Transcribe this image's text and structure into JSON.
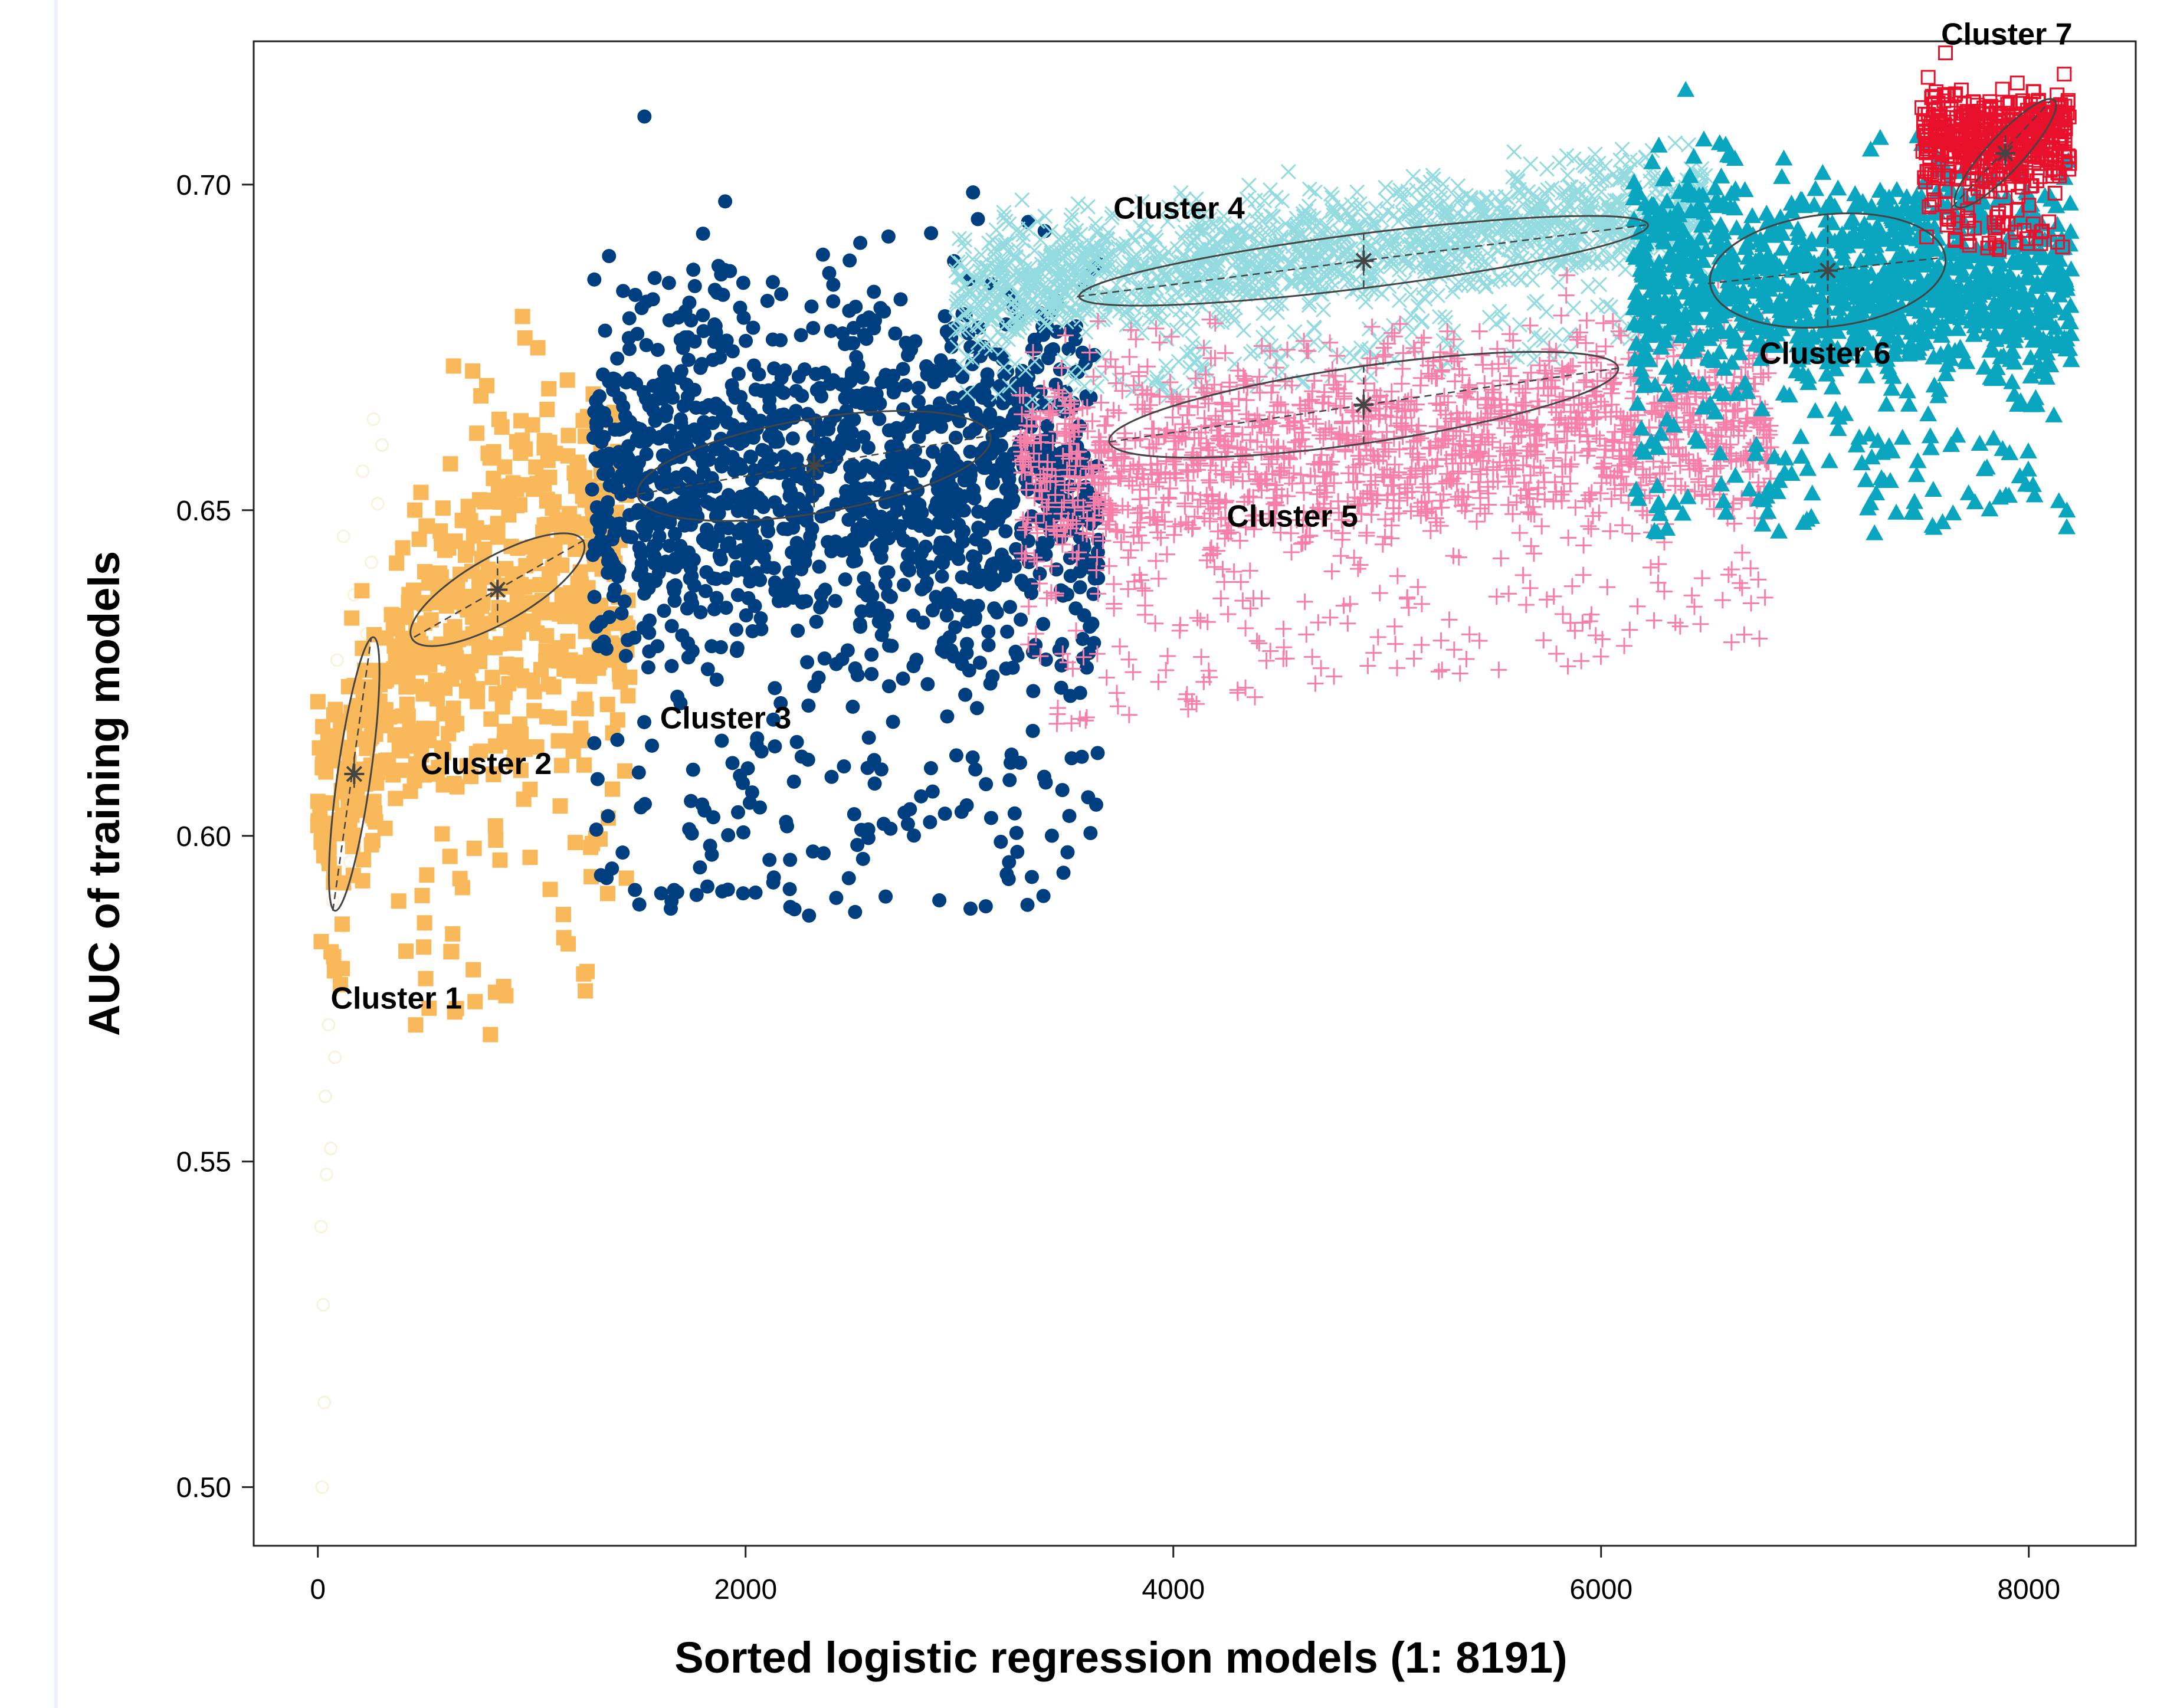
{
  "chart_data": {
    "type": "scatter",
    "title": "",
    "xlabel": "Sorted logistic regression models (1: 8191)",
    "ylabel": "AUC of training models",
    "xlim": [
      -300,
      8500
    ],
    "ylim": [
      0.491,
      0.722
    ],
    "x_ticks": [
      0,
      2000,
      4000,
      6000,
      8000
    ],
    "x_tick_labels": [
      "0",
      "2000",
      "4000",
      "6000",
      "8000"
    ],
    "y_ticks": [
      0.5,
      0.55,
      0.6,
      0.65,
      0.7
    ],
    "y_tick_labels": [
      "0.50",
      "0.55",
      "0.60",
      "0.65",
      "0.70"
    ],
    "grid": false,
    "legend": "none",
    "series": [
      {
        "name": "Cluster 1",
        "marker": "circle-open",
        "color": "#f7f3de",
        "label_x": 60,
        "label_y": 0.5735,
        "x_range": [
          0,
          340
        ],
        "center": [
          170,
          0.6095
        ],
        "ellipse_end1": [
          70,
          0.5885
        ],
        "ellipse_end2": [
          250,
          0.6305
        ],
        "minor_half_width": 28,
        "points": [
          [
            20,
            0.5
          ],
          [
            30,
            0.513
          ],
          [
            25,
            0.528
          ],
          [
            15,
            0.54
          ],
          [
            40,
            0.548
          ],
          [
            60,
            0.552
          ],
          [
            35,
            0.56
          ],
          [
            80,
            0.566
          ],
          [
            50,
            0.571
          ],
          [
            90,
            0.578
          ],
          [
            120,
            0.586
          ],
          [
            70,
            0.59
          ],
          [
            150,
            0.596
          ],
          [
            110,
            0.601
          ],
          [
            180,
            0.606
          ],
          [
            60,
            0.612
          ],
          [
            140,
            0.617
          ],
          [
            200,
            0.622
          ],
          [
            90,
            0.627
          ],
          [
            230,
            0.631
          ],
          [
            170,
            0.637
          ],
          [
            250,
            0.642
          ],
          [
            120,
            0.646
          ],
          [
            280,
            0.651
          ],
          [
            210,
            0.656
          ],
          [
            300,
            0.66
          ],
          [
            260,
            0.664
          ]
        ]
      },
      {
        "name": "Cluster 2",
        "marker": "square",
        "color": "#f9b95a",
        "label_x": 480,
        "label_y": 0.6095,
        "x_range": [
          0,
          1460
        ],
        "center": [
          840,
          0.6378
        ],
        "ellipse_end1": [
          450,
          0.6305
        ],
        "ellipse_end2": [
          1250,
          0.6455
        ],
        "minor_half_width": 55,
        "points": []
      },
      {
        "name": "Cluster 3",
        "marker": "circle",
        "color": "#003f7f",
        "label_x": 1600,
        "label_y": 0.6165,
        "x_range": [
          1280,
          3650
        ],
        "center": [
          2320,
          0.6568
        ],
        "ellipse_end1": [
          1500,
          0.6525
        ],
        "ellipse_end2": [
          3150,
          0.6615
        ],
        "minor_half_width": 80,
        "points": []
      },
      {
        "name": "Cluster 4",
        "marker": "x",
        "color": "#94dbe0",
        "label_x": 3720,
        "label_y": 0.6948,
        "x_range": [
          2980,
          6500
        ],
        "center": [
          4890,
          0.6883
        ],
        "ellipse_end1": [
          3550,
          0.6828
        ],
        "ellipse_end2": [
          6210,
          0.6938
        ],
        "minor_half_width": 46,
        "points": []
      },
      {
        "name": "Cluster 5",
        "marker": "plus",
        "color": "#f77fa8",
        "label_x": 4250,
        "label_y": 0.6475,
        "x_range": [
          3280,
          6800
        ],
        "center": [
          4890,
          0.6662
        ],
        "ellipse_end1": [
          3700,
          0.6605
        ],
        "ellipse_end2": [
          6080,
          0.6718
        ],
        "minor_half_width": 65,
        "points": []
      },
      {
        "name": "Cluster 6",
        "marker": "triangle",
        "color": "#0aa5be",
        "label_x": 6740,
        "label_y": 0.6725,
        "x_range": [
          6150,
          8200
        ],
        "center": [
          7060,
          0.6868
        ],
        "ellipse_end1": [
          6500,
          0.6848
        ],
        "ellipse_end2": [
          7600,
          0.6888
        ],
        "minor_half_width": 95,
        "points": []
      },
      {
        "name": "Cluster 7",
        "marker": "square-open",
        "color": "#e8102a",
        "label_x": 7590,
        "label_y": 0.7215,
        "x_range": [
          7500,
          8191
        ],
        "center": [
          7890,
          0.7048
        ],
        "ellipse_end1": [
          7640,
          0.6965
        ],
        "ellipse_end2": [
          8100,
          0.7128
        ],
        "minor_half_width": 30,
        "points": []
      }
    ]
  },
  "cluster_labels": [
    "Cluster 1",
    "Cluster 2",
    "Cluster 3",
    "Cluster 4",
    "Cluster 5",
    "Cluster 6",
    "Cluster 7"
  ]
}
